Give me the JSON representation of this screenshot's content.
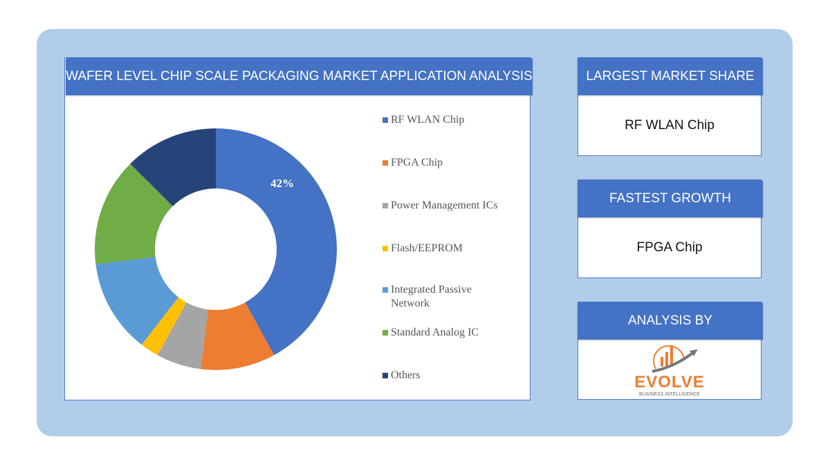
{
  "chart_header": "WAFER LEVEL CHIP SCALE PACKAGING MARKET APPLICATION ANALYSIS",
  "chart_data": {
    "type": "pie",
    "style": "donut",
    "categories": [
      "RF WLAN Chip",
      "FPGA Chip",
      "Power Management ICs",
      "Flash/EEPROM",
      "Integrated Passive Network",
      "Standard Analog IC",
      "Others"
    ],
    "values": [
      42,
      10,
      6,
      2.5,
      12.5,
      14.5,
      12.5
    ],
    "colors": [
      "#4472c4",
      "#ed7d31",
      "#a5a5a5",
      "#ffc000",
      "#5b9bd5",
      "#70ad47",
      "#264478"
    ],
    "data_labels": [
      "42%",
      "",
      "",
      "",
      "",
      "",
      ""
    ],
    "legend_position": "right"
  },
  "cards": [
    {
      "title": "LARGEST MARKET SHARE",
      "value": "RF WLAN Chip"
    },
    {
      "title": "FASTEST GROWTH",
      "value": "FPGA Chip"
    },
    {
      "title": "ANALYSIS BY",
      "logo_text": "EVOLVE",
      "logo_subtext": "BUSINESS INTELLIGENCE"
    }
  ]
}
